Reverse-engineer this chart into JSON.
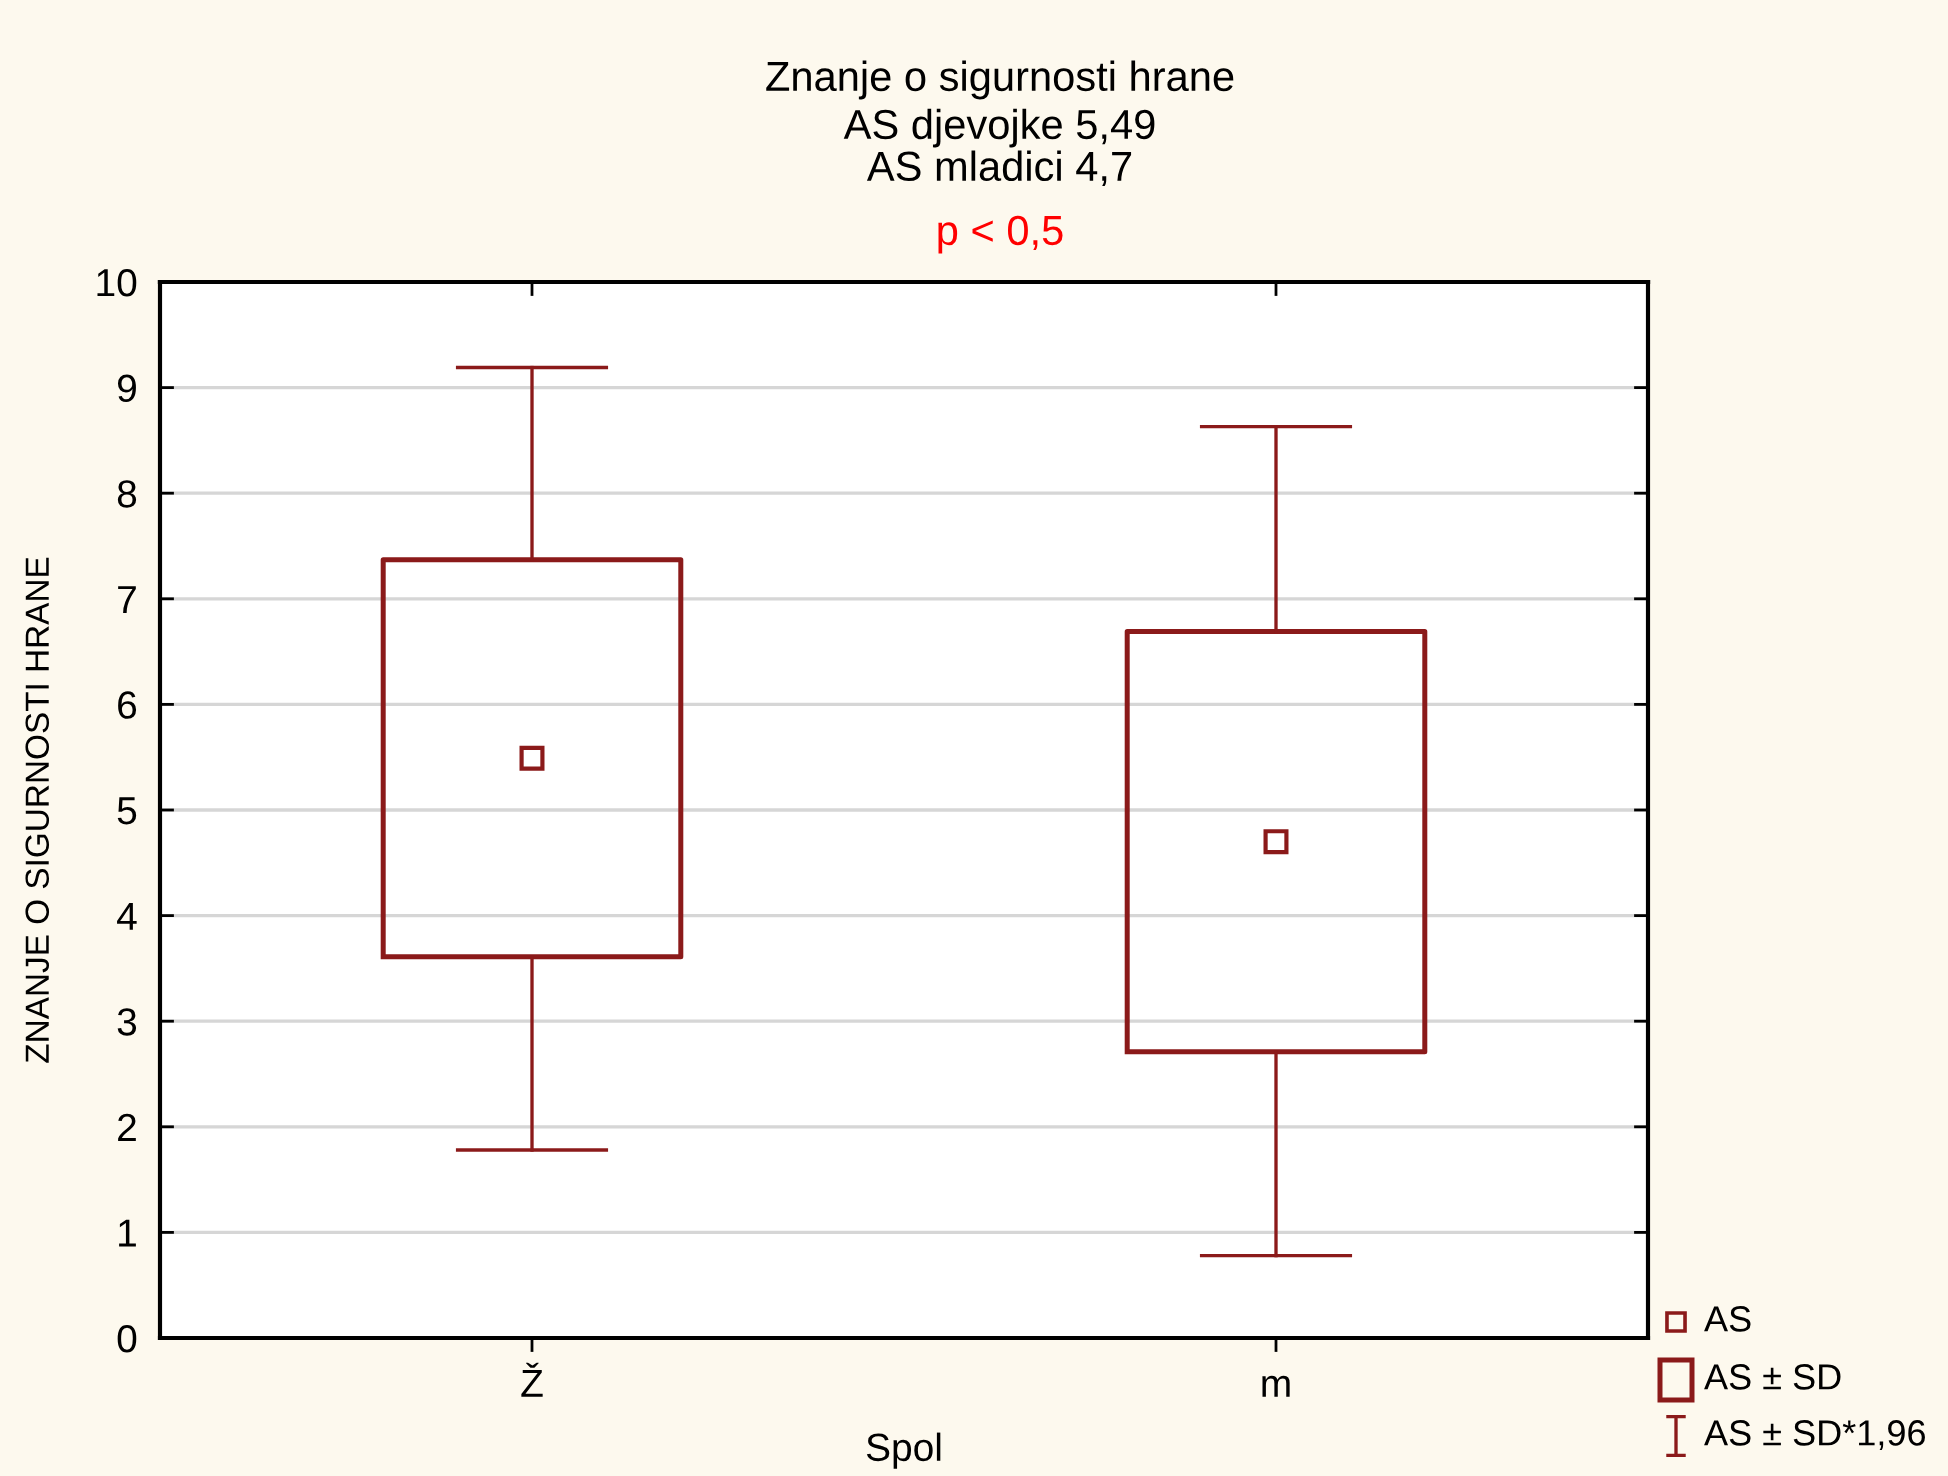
{
  "chart_data": {
    "type": "box",
    "title": "Znanje o sigurnosti hrane",
    "subtitle": "AS djevojke 5,49\nAS mladici 4,7",
    "xlabel": "Spol",
    "ylabel": "ZNANJE O SIGURNOSTI HRANE",
    "categories": [
      "Ž",
      "m"
    ],
    "boxes": [
      {
        "low": 1.78,
        "q1": 3.61,
        "q3": 7.37,
        "high": 9.19,
        "mean": 5.49
      },
      {
        "low": 0.78,
        "q1": 2.71,
        "q3": 6.69,
        "high": 8.63,
        "mean": 4.7
      }
    ],
    "color": "#8b1a1a",
    "marker": "square",
    "ylim": [
      0,
      10
    ],
    "yticks": [
      0,
      1,
      2,
      3,
      4,
      5,
      6,
      7,
      8,
      9,
      10
    ],
    "grid": "y",
    "annotations": [
      "p < 0,5",
      "AS",
      "AS ± SD",
      "AS ± SD*1,96"
    ]
  }
}
